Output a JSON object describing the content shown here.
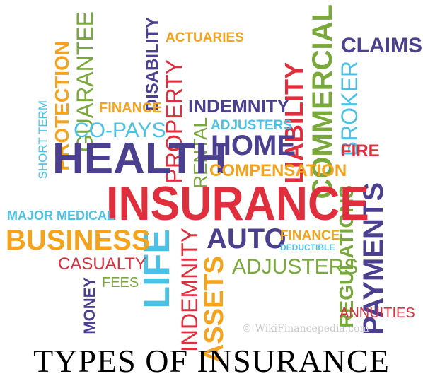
{
  "words": {
    "short_term": "SHORT TERM",
    "protection": "PROTECTION",
    "guarantee": "GUARANTEE",
    "disability": "DISABILITY",
    "actuaries": "ACTUARIES",
    "property": "PROPERTY",
    "finance_top": "FINANCE",
    "co_pays": "CO-PAYS",
    "indemnity_top": "INDEMNITY",
    "liability": "LIABILITY",
    "commercial": "COMMERCIAL",
    "claims": "CLAIMS",
    "broker": "BROKER",
    "health": "HEALTH",
    "rental": "RENTAL",
    "adjusters_top": "ADJUSTERS",
    "home": "HOME",
    "fire": "FIRE",
    "compensation": "COMPENSATION",
    "insurance": "INSURANCE",
    "regulations": "REGULATIONS",
    "payments": "PAYMENTS",
    "major_medical": "MAJOR MEDICAL",
    "business": "BUSINESS",
    "life": "LIFE",
    "indemnity_vert": "INDEMNITY",
    "auto": "AUTO",
    "finance_mid": "FINANCE",
    "deductible": "DEDUCTIBLE",
    "casualty": "CASUALTY",
    "assets": "ASSETS",
    "adjusters_mid": "ADJUSTERS",
    "money": "MONEY",
    "fees": "FEES",
    "annuities": "ANNUITIES"
  },
  "watermark": "© WikiFinancepedia.com",
  "caption": "TYPES OF INSURANCE",
  "colors": {
    "purple": "#4b3f8f",
    "green": "#79a93a",
    "orange": "#f5a21c",
    "red": "#e02e3d",
    "blue": "#4cc1e6"
  }
}
